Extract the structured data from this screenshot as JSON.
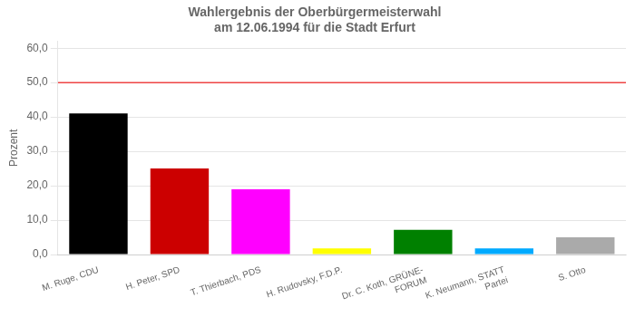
{
  "chart_data": {
    "type": "bar",
    "title": "Wahlergebnis der Oberbürgermeisterwahl\nam 12.06.1994 für die Stadt Erfurt",
    "y_label": "Prozent",
    "categories": [
      "M. Ruge, CDU",
      "H. Peter, SPD",
      "T. Thierbach, PDS",
      "H. Rudovsky, F.D.P.",
      "Dr. C. Koth, GRÜNE-\nFORUM",
      "K. Neumann, STATT\nPartei",
      "S. Otto"
    ],
    "values": [
      41.0,
      25.0,
      19.0,
      1.8,
      7.2,
      1.8,
      5.0
    ],
    "colors": [
      "#000000",
      "#cc0000",
      "#ff00ff",
      "#ffff00",
      "#008000",
      "#00aaff",
      "#aaaaaa"
    ],
    "ylim": [
      0,
      62
    ],
    "yticks": [
      {
        "value": 0,
        "label": "0,0"
      },
      {
        "value": 10,
        "label": "10,0"
      },
      {
        "value": 20,
        "label": "20,0"
      },
      {
        "value": 30,
        "label": "30,0"
      },
      {
        "value": 40,
        "label": "40,0"
      },
      {
        "value": 50,
        "label": "50,0"
      },
      {
        "value": 60,
        "label": "60,0"
      }
    ],
    "hline": {
      "value": 50,
      "color": "#ee4444"
    },
    "grid": true
  }
}
